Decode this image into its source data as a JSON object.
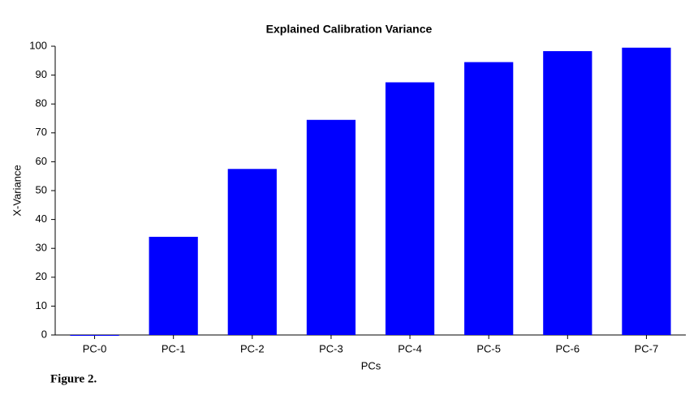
{
  "chart_data": {
    "type": "bar",
    "title": "Explained Calibration Variance",
    "x_label": "PCs",
    "y_label": "X-Variance",
    "caption": "Figure 2.",
    "categories": [
      "PC-0",
      "PC-1",
      "PC-2",
      "PC-3",
      "PC-4",
      "PC-5",
      "PC-6",
      "PC-7"
    ],
    "values": [
      0,
      34,
      57.5,
      74.5,
      87.5,
      94.5,
      98.3,
      99.5
    ],
    "color": "#0000ff",
    "ylim": [
      0,
      100
    ],
    "yticks": [
      0,
      10,
      20,
      30,
      40,
      50,
      60,
      70,
      80,
      90,
      100
    ],
    "grid": false
  }
}
